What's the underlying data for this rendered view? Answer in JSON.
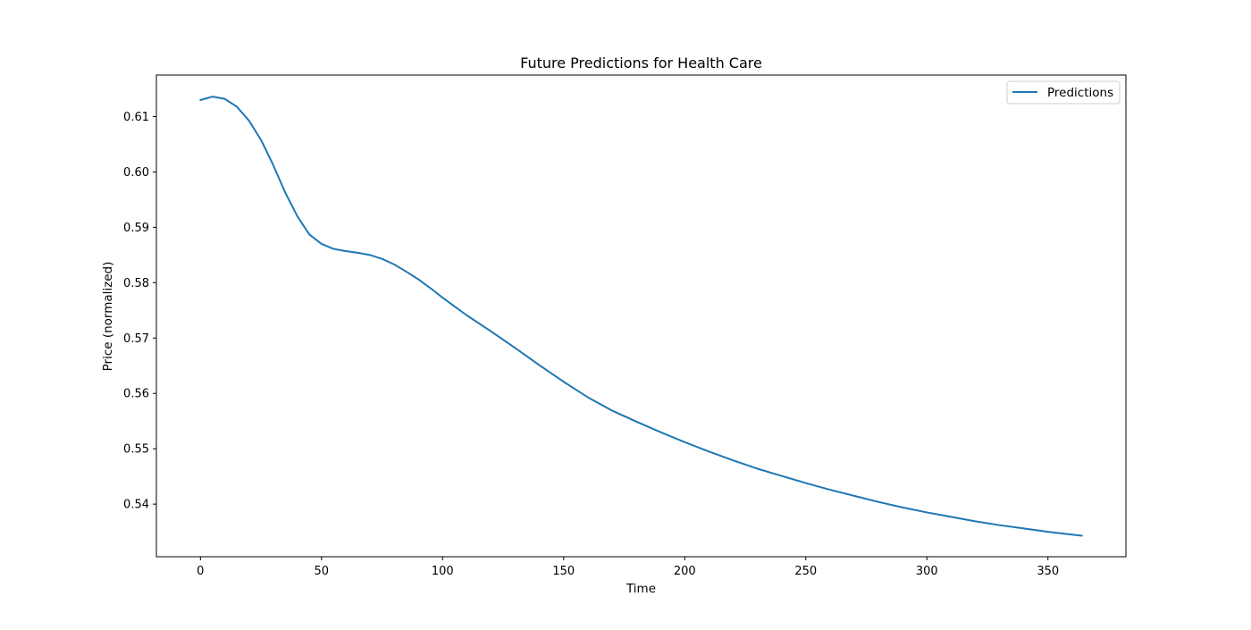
{
  "chart_data": {
    "type": "line",
    "title": "Future Predictions for Health Care",
    "xlabel": "Time",
    "ylabel": "Price (normalized)",
    "xlim": [
      -18.2,
      382.2
    ],
    "ylim": [
      0.5305,
      0.6175
    ],
    "x_ticks": [
      0,
      50,
      100,
      150,
      200,
      250,
      300,
      350
    ],
    "y_ticks": [
      0.54,
      0.55,
      0.56,
      0.57,
      0.58,
      0.59,
      0.6,
      0.61
    ],
    "x_tick_labels": [
      "0",
      "50",
      "100",
      "150",
      "200",
      "250",
      "300",
      "350"
    ],
    "y_tick_labels": [
      "0.54",
      "0.55",
      "0.56",
      "0.57",
      "0.58",
      "0.59",
      "0.60",
      "0.61"
    ],
    "grid": false,
    "legend_position": "top-right",
    "series": [
      {
        "name": "Predictions",
        "color": "#1f77b4",
        "x": [
          0,
          5,
          10,
          15,
          20,
          25,
          30,
          35,
          40,
          45,
          50,
          55,
          60,
          65,
          70,
          75,
          80,
          85,
          90,
          95,
          100,
          110,
          120,
          130,
          140,
          150,
          160,
          170,
          180,
          190,
          200,
          210,
          220,
          230,
          240,
          250,
          260,
          270,
          280,
          290,
          300,
          310,
          320,
          330,
          340,
          350,
          364
        ],
        "y": [
          0.613,
          0.6136,
          0.6132,
          0.6118,
          0.6093,
          0.6058,
          0.6013,
          0.5963,
          0.592,
          0.5887,
          0.587,
          0.5861,
          0.5857,
          0.5854,
          0.585,
          0.5843,
          0.5833,
          0.582,
          0.5806,
          0.579,
          0.5773,
          0.5741,
          0.5712,
          0.5682,
          0.5651,
          0.5621,
          0.5593,
          0.5569,
          0.5549,
          0.553,
          0.5512,
          0.5495,
          0.5479,
          0.5464,
          0.5451,
          0.5438,
          0.5426,
          0.5415,
          0.5404,
          0.5394,
          0.5385,
          0.5377,
          0.5369,
          0.5362,
          0.5356,
          0.535,
          0.5343
        ]
      }
    ]
  }
}
